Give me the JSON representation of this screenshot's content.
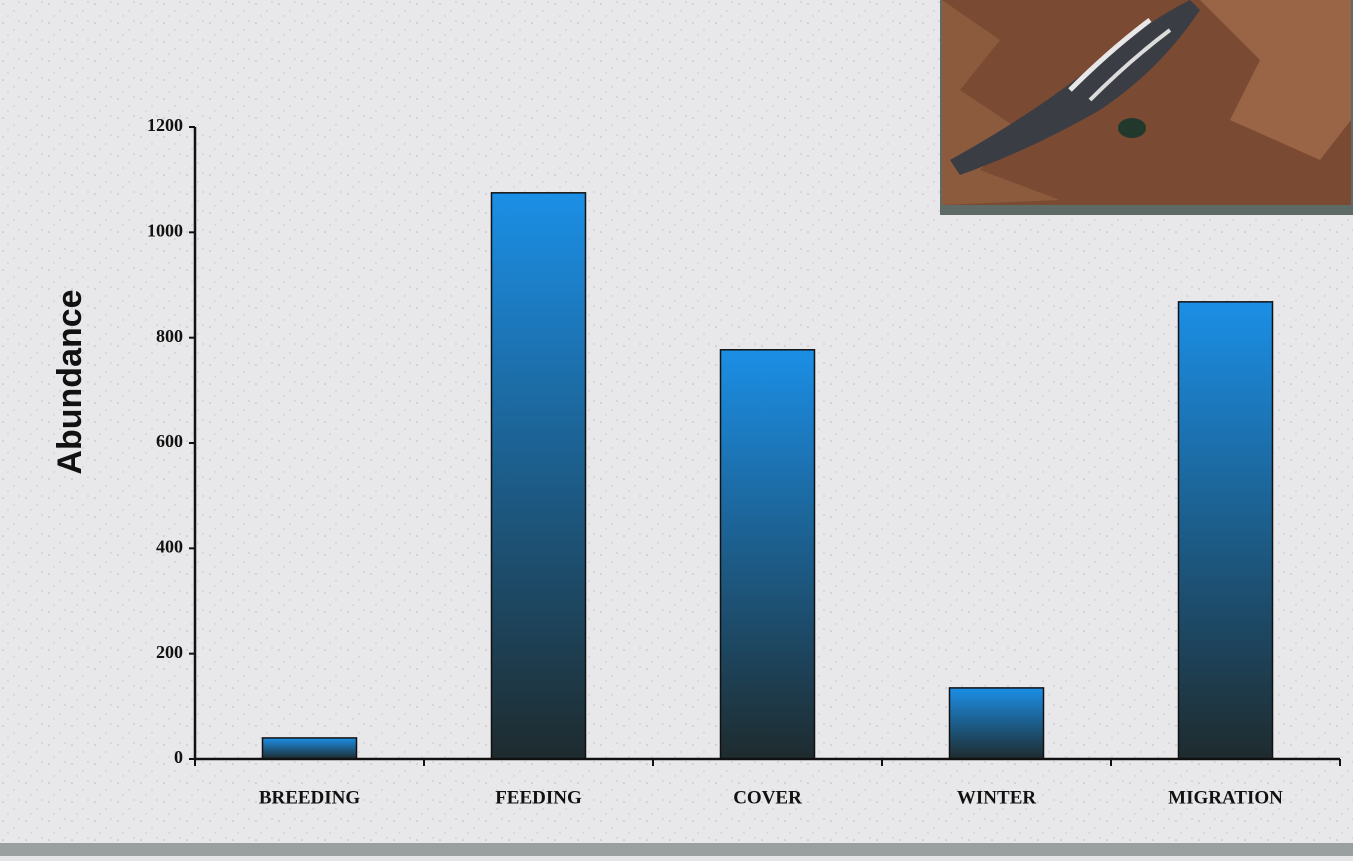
{
  "chart_data": {
    "type": "bar",
    "y_label": "Abundance",
    "categories": [
      "BREEDING",
      "FEEDING",
      "COVER",
      "WINTER",
      "MIGRATION"
    ],
    "values": [
      40,
      1075,
      777,
      135,
      868
    ],
    "gradient": [
      "#1b8fe6",
      "#1e2b2e"
    ],
    "ylim": [
      0,
      1200
    ],
    "yticks": [
      0,
      200,
      400,
      600,
      800,
      1000,
      1200
    ]
  }
}
